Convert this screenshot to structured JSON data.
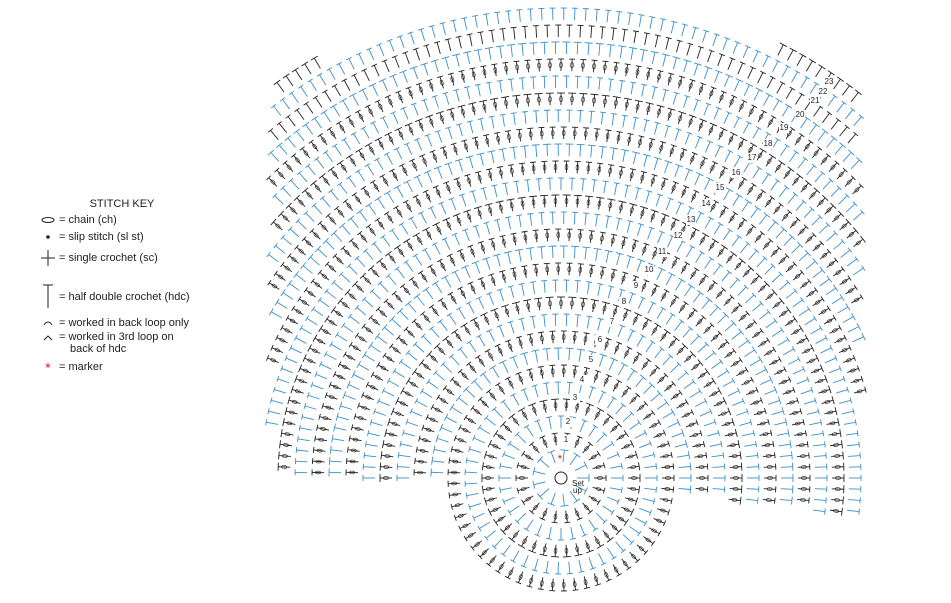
{
  "key": {
    "title": "STITCH KEY",
    "items": [
      {
        "lines": [
          "= chain (ch)"
        ]
      },
      {
        "lines": [
          "= slip stitch (sl st)"
        ]
      },
      {
        "lines": [
          "= single crochet (sc)"
        ]
      },
      {
        "lines": [
          "= half double crochet (hdc)"
        ]
      },
      {
        "lines": [
          "= worked in back loop only"
        ]
      },
      {
        "lines": [
          "= worked in 3rd loop on",
          "back of hdc"
        ]
      },
      {
        "lines": [
          "= marker"
        ]
      }
    ]
  },
  "diagram": {
    "start": [
      "Set",
      "up"
    ],
    "rounds": [
      "1",
      "2",
      "3",
      "4",
      "5",
      "6",
      "7",
      "8",
      "9",
      "10",
      "11",
      "12",
      "13",
      "14",
      "15",
      "16",
      "17",
      "18",
      "19",
      "20",
      "21",
      "22",
      "23"
    ]
  }
}
